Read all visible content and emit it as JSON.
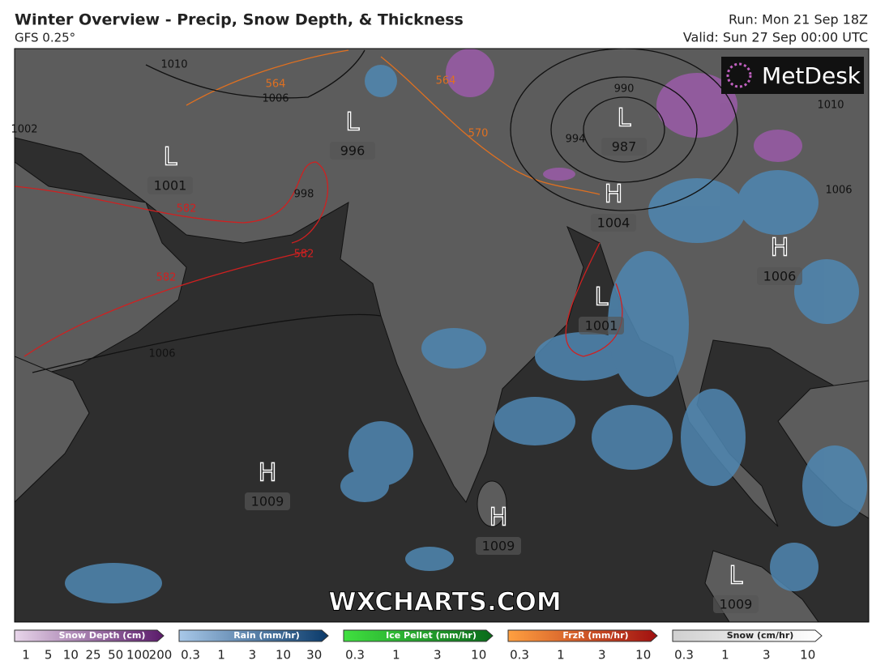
{
  "header": {
    "title": "Winter Overview - Precip, Snow Depth, & Thickness",
    "model": "GFS 0.25°",
    "run": "Run: Mon 21 Sep 18Z",
    "valid": "Valid: Sun 27 Sep 00:00 UTC"
  },
  "logo": "MetDesk",
  "watermark": "WXCHARTS.COM",
  "centers": [
    {
      "letter": "L",
      "pressure": "1001"
    },
    {
      "letter": "L",
      "pressure": "996"
    },
    {
      "letter": "L",
      "pressure": "987"
    },
    {
      "letter": "H",
      "pressure": "1004"
    },
    {
      "letter": "H",
      "pressure": "1006"
    },
    {
      "letter": "L",
      "pressure": "1001"
    },
    {
      "letter": "H",
      "pressure": "1009"
    },
    {
      "letter": "H",
      "pressure": "1009"
    },
    {
      "letter": "L",
      "pressure": "1009"
    }
  ],
  "contour_labels": [
    "1010",
    "1006",
    "1002",
    "998",
    "994",
    "990",
    "1006",
    "1006",
    "1010",
    "564",
    "564",
    "570",
    "582",
    "582",
    "582"
  ],
  "legends": [
    {
      "title": "Snow Depth (cm)",
      "ticks": [
        "1",
        "5",
        "10",
        "25",
        "50",
        "100",
        "200"
      ]
    },
    {
      "title": "Rain (mm/hr)",
      "ticks": [
        "0.3",
        "1",
        "3",
        "10",
        "30"
      ]
    },
    {
      "title": "Ice Pellet (mm/hr)",
      "ticks": [
        "0.3",
        "1",
        "3",
        "10"
      ]
    },
    {
      "title": "FrzR (mm/hr)",
      "ticks": [
        "0.3",
        "1",
        "3",
        "10"
      ]
    },
    {
      "title": "Snow (cm/hr)",
      "ticks": [
        "0.3",
        "1",
        "3",
        "10"
      ]
    }
  ]
}
